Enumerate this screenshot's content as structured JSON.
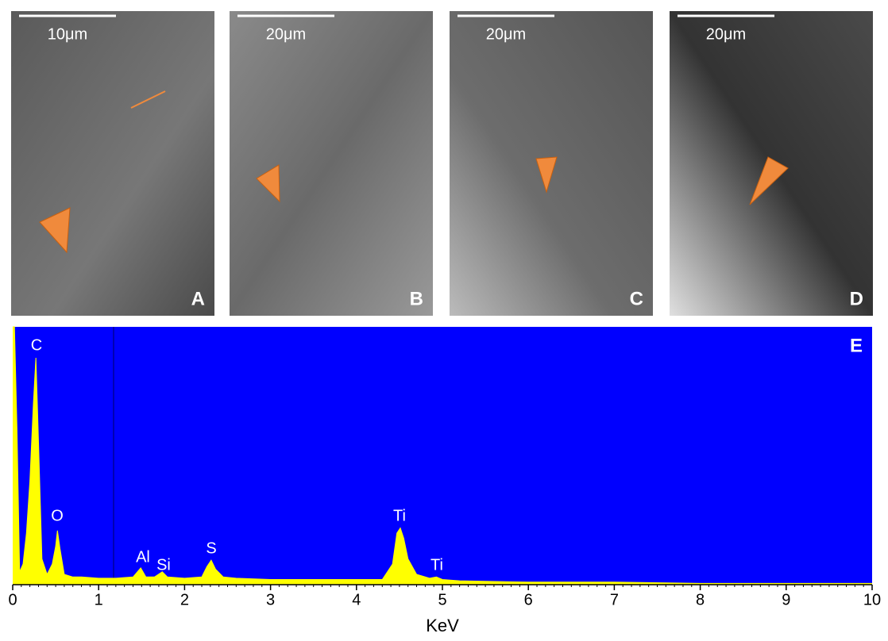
{
  "panels": [
    {
      "scale_bar": "10μm",
      "label": "A"
    },
    {
      "scale_bar": "20μm",
      "label": "B"
    },
    {
      "scale_bar": "20μm",
      "label": "C"
    },
    {
      "scale_bar": "20μm",
      "label": "D"
    }
  ],
  "chart_data": {
    "type": "area",
    "panel_label": "E",
    "x_label": "KeV",
    "x": [
      0,
      0.02,
      0.05,
      0.08,
      0.12,
      0.16,
      0.2,
      0.24,
      0.27,
      0.3,
      0.34,
      0.4,
      0.46,
      0.5,
      0.52,
      0.55,
      0.6,
      0.7,
      0.8,
      1.0,
      1.2,
      1.4,
      1.49,
      1.55,
      1.65,
      1.74,
      1.8,
      2.0,
      2.2,
      2.26,
      2.31,
      2.36,
      2.45,
      2.6,
      3.0,
      3.5,
      4.0,
      4.3,
      4.42,
      4.47,
      4.51,
      4.55,
      4.6,
      4.7,
      4.85,
      4.93,
      5.0,
      5.2,
      6,
      7,
      8,
      9,
      10
    ],
    "values": [
      100,
      100,
      60,
      5,
      8,
      20,
      40,
      70,
      88,
      55,
      10,
      4,
      8,
      15,
      21,
      14,
      4,
      3,
      3,
      2.5,
      2.5,
      3,
      6.5,
      3,
      3,
      5,
      3,
      2.5,
      3,
      7,
      9.5,
      6,
      3,
      2.5,
      2,
      2,
      2,
      2,
      8,
      20,
      22,
      18,
      10,
      4,
      2.5,
      3,
      2,
      1.5,
      1,
      1,
      0.5,
      0.5,
      0.5
    ],
    "color": "#ffff00",
    "background": "#0000ff",
    "xlim": [
      0,
      10
    ],
    "xticks": [
      0,
      1,
      2,
      3,
      4,
      5,
      6,
      7,
      8,
      9,
      10
    ],
    "ylim": [
      0,
      100
    ],
    "annotations": [
      "C",
      "O",
      "Al",
      "Si",
      "S",
      "Ti",
      "Ti"
    ]
  }
}
